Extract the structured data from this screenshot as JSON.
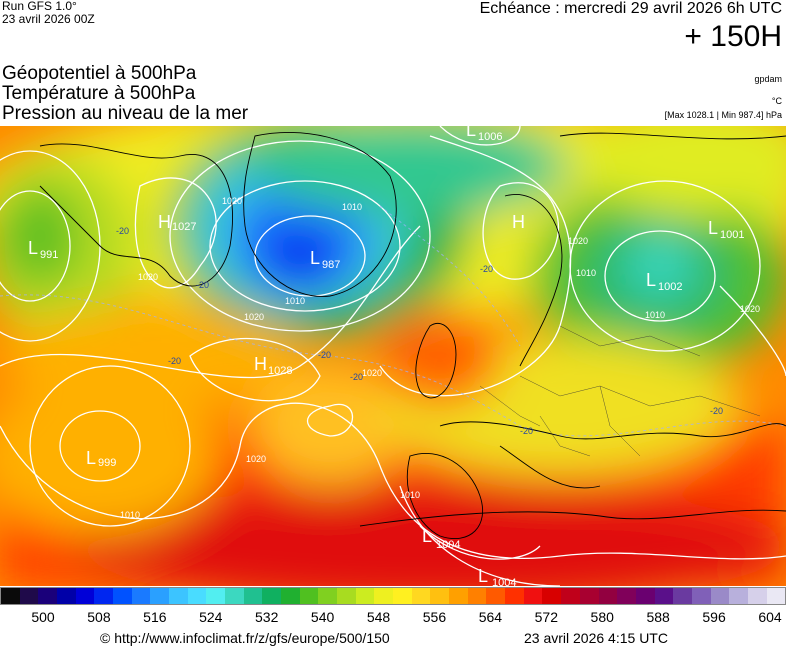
{
  "header": {
    "run": "Run GFS 1.0°",
    "run_date": "23 avril 2026 00Z",
    "echeance": "Echéance : mercredi 29 avril 2026 6h UTC",
    "horizon": "+ 150H"
  },
  "fields": [
    "Géopotentiel à 500hPa",
    "Température à 500hPa",
    "Pression au niveau de la mer"
  ],
  "units": {
    "geopotential": "gpdam",
    "temperature": "°C",
    "pressure": "[Max 1028.1 | Min 987.4] hPa"
  },
  "map": {
    "pressure_centers": [
      {
        "type": "H",
        "value": "1027"
      },
      {
        "type": "L",
        "value": "991"
      },
      {
        "type": "L",
        "value": "987"
      },
      {
        "type": "L",
        "value": "1006"
      },
      {
        "type": "H",
        "value": ""
      },
      {
        "type": "L",
        "value": "1001"
      },
      {
        "type": "L",
        "value": "1002"
      },
      {
        "type": "H",
        "value": "1028"
      },
      {
        "type": "L",
        "value": "999"
      },
      {
        "type": "L",
        "value": "1004"
      },
      {
        "type": "L",
        "value": "1004"
      }
    ],
    "isobar_labels": [
      "1020",
      "1010",
      "1020",
      "1010",
      "1020",
      "1020",
      "1020",
      "1010",
      "1010",
      "1020",
      "1010",
      "1020",
      "1010"
    ],
    "temperature_labels": [
      "-20",
      "-20",
      "-20",
      "-20",
      "-20",
      "-20",
      "-20",
      "-20"
    ]
  },
  "colorbar": {
    "colors": [
      "#0a0a0a",
      "#1f0a4a",
      "#1a007a",
      "#0000a8",
      "#0000d8",
      "#0026f0",
      "#0052ff",
      "#1a7aff",
      "#2aa0ff",
      "#3cc4ff",
      "#49dcff",
      "#52eef0",
      "#3cd8c0",
      "#20c090",
      "#10b060",
      "#20b030",
      "#50c020",
      "#80d020",
      "#a8dc20",
      "#ccec20",
      "#eef020",
      "#fff020",
      "#ffd820",
      "#ffc010",
      "#ffa000",
      "#ff8000",
      "#ff5a00",
      "#ff3000",
      "#f01010",
      "#d80000",
      "#c0001a",
      "#a80030",
      "#920040",
      "#80005a",
      "#6a0070",
      "#5a108a",
      "#6a3aa0",
      "#8060b8",
      "#9a8ac8",
      "#b8b0dc",
      "#d6d0ea",
      "#eae8f4"
    ],
    "ticks": [
      "500",
      "508",
      "516",
      "524",
      "532",
      "540",
      "548",
      "556",
      "564",
      "572",
      "580",
      "588",
      "596",
      "604"
    ]
  },
  "footer": {
    "url": "© http://www.infoclimat.fr/z/gfs/europe/500/150",
    "date": "23 avril 2026  4:15 UTC"
  }
}
